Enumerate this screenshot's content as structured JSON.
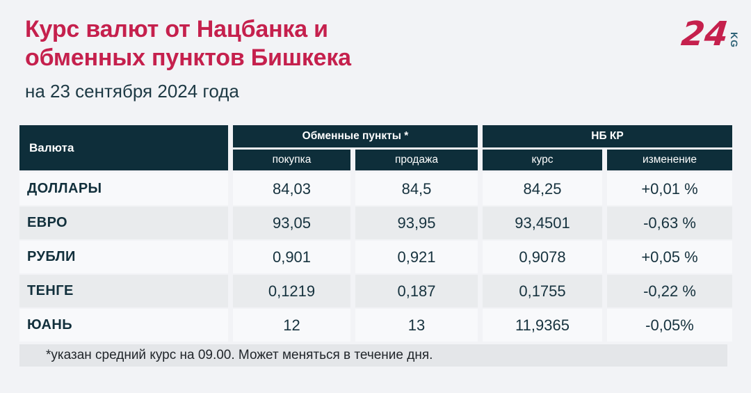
{
  "colors": {
    "title_red": "#c5204d",
    "header_dark": "#0e2e3a",
    "text_ink": "#16323e",
    "page_bg": "#f2f3f6",
    "row_light": "#f8f9fb",
    "row_gray": "#e9ebed",
    "footnote_bg": "#e4e6e9",
    "logo_kg_color": "#2e6277"
  },
  "header": {
    "title_line1": "Курс валют от Нацбанка и",
    "title_line2": "обменных пунктов Бишкека",
    "subtitle": "на 23 сентября 2024 года",
    "logo": {
      "number": "24",
      "suffix": "KG"
    }
  },
  "table": {
    "currency_header": "Валюта",
    "group1": "Обменные пункты *",
    "group2": "НБ КР",
    "subheaders": [
      "покупка",
      "продажа",
      "курс",
      "изменение"
    ],
    "rows": [
      {
        "currency": "ДОЛЛАРЫ",
        "buy": "84,03",
        "sell": "84,5",
        "rate": "84,25",
        "change": "+0,01 %"
      },
      {
        "currency": "ЕВРО",
        "buy": "93,05",
        "sell": "93,95",
        "rate": "93,4501",
        "change": "-0,63 %"
      },
      {
        "currency": "РУБЛИ",
        "buy": "0,901",
        "sell": "0,921",
        "rate": "0,9078",
        "change": "+0,05 %"
      },
      {
        "currency": "ТЕНГЕ",
        "buy": "0,1219",
        "sell": "0,187",
        "rate": "0,1755",
        "change": "-0,22 %"
      },
      {
        "currency": "ЮАНЬ",
        "buy": "12",
        "sell": "13",
        "rate": "11,9365",
        "change": "-0,05%"
      }
    ]
  },
  "footnote": "*указан средний курс на 09.00. Может меняться в течение дня.",
  "chart_data": {
    "type": "table",
    "title": "Курс валют от Нацбанка и обменных пунктов Бишкека",
    "date": "на 23 сентября 2024 года",
    "column_groups": [
      "Обменные пункты *",
      "НБ КР"
    ],
    "columns": [
      "Валюта",
      "покупка",
      "продажа",
      "курс",
      "изменение"
    ],
    "rows": [
      [
        "ДОЛЛАРЫ",
        84.03,
        84.5,
        84.25,
        "+0.01 %"
      ],
      [
        "ЕВРО",
        93.05,
        93.95,
        93.4501,
        "-0.63 %"
      ],
      [
        "РУБЛИ",
        0.901,
        0.921,
        0.9078,
        "+0.05 %"
      ],
      [
        "ТЕНГЕ",
        0.1219,
        0.187,
        0.1755,
        "-0.22 %"
      ],
      [
        "ЮАНЬ",
        12,
        13,
        11.9365,
        "-0.05%"
      ]
    ],
    "note": "*указан средний курс на 09.00. Может меняться в течение дня."
  }
}
